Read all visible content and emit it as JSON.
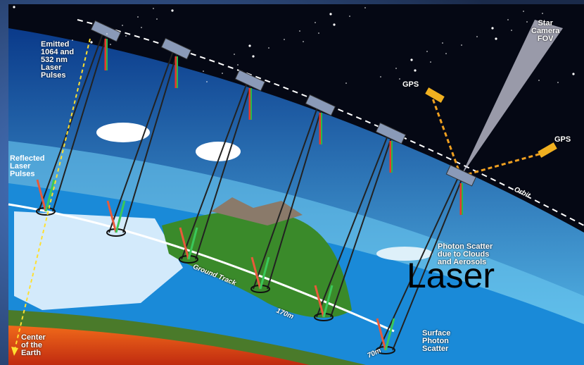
{
  "labels": {
    "emitted": "Emitted\n1064 and\n532 nm\nLaser\nPulses",
    "reflected": "Reflected\nLaser\nPulses",
    "star_camera": "Star\nCamera\nFOV",
    "gps_left": "GPS",
    "gps_right": "GPS",
    "orbit": "Orbit",
    "photon_scatter": "Photon Scatter\ndue to Clouds\nand Aerosols",
    "ground_track": "Ground Track",
    "track_170m": "170m",
    "track_70m": "70m",
    "surface_scatter": "Surface\nPhoton\nScatter",
    "center_earth": "Center\nof the\nEarth"
  },
  "overlay_text": "Laser",
  "colors": {
    "space": "#050814",
    "sky_top": "#0a4a9a",
    "sky_bottom": "#4ab4e8",
    "ocean": "#1a8ad8",
    "land": "#3a8a2a",
    "ice": "#e8f4ff",
    "core": "#e84a1a",
    "beam_red": "#e83a2a",
    "beam_green": "#2ab84a",
    "orbit_line": "#ffffff",
    "gps_link": "#f0a020"
  }
}
